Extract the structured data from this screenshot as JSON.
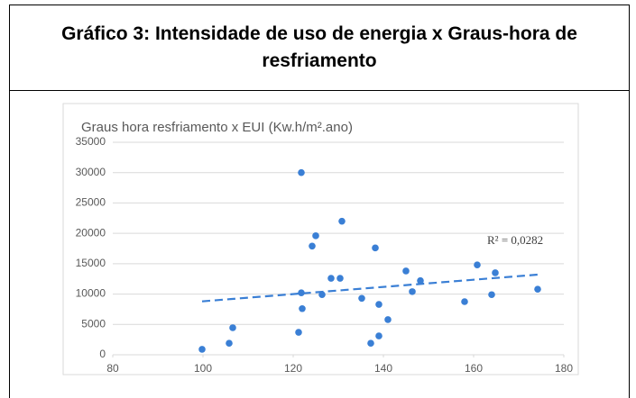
{
  "header": {
    "title": "Gráfico 3: Intensidade de uso de energia x Graus-hora de resfriamento"
  },
  "chart_data": {
    "type": "scatter",
    "title": "Graus hora resfriamento x EUI (Kw.h/m².ano)",
    "color": "#3a7fd5",
    "x": [
      99.8,
      105.8,
      106.6,
      121.2,
      121.8,
      122,
      121.8,
      124.2,
      125,
      126.4,
      128.4,
      130.4,
      130.8,
      135.2,
      137.2,
      138.2,
      139,
      139,
      141,
      145,
      146.4,
      148.2,
      158,
      160.8,
      164,
      164.8,
      174.2
    ],
    "values": [
      900,
      1900,
      4450,
      3700,
      10200,
      7600,
      30000,
      17900,
      19600,
      9900,
      12600,
      12600,
      22000,
      9300,
      1900,
      17600,
      3100,
      8300,
      5800,
      13800,
      10400,
      12200,
      8750,
      14800,
      9900,
      13500,
      10800
    ],
    "trendline": {
      "x": [
        99.8,
        174.2
      ],
      "values": [
        8800,
        13200
      ],
      "label": "R² = 0,0282"
    },
    "xlim": [
      80,
      180
    ],
    "xticks": [
      80,
      100,
      120,
      140,
      160,
      180
    ],
    "ylim": [
      0,
      35000
    ],
    "yticks": [
      0,
      5000,
      10000,
      15000,
      20000,
      25000,
      30000,
      35000
    ],
    "grid": true
  }
}
